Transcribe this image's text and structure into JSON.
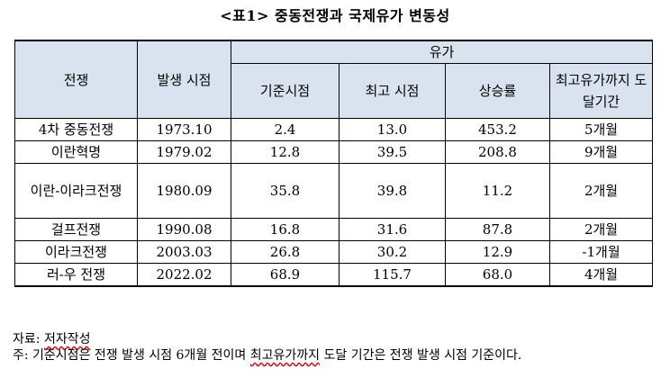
{
  "title": "<표1> 중동전쟁과 국제유가 변동성",
  "table": {
    "headers": {
      "war": "전쟁",
      "date": "발생 시점",
      "oil_group": "유가",
      "base": "기준시점",
      "peak": "최고 시점",
      "rate": "상승률",
      "duration": "최고유가까지 도달기간"
    },
    "rows": [
      {
        "war": "4차 중동전쟁",
        "date": "1973.10",
        "base": "2.4",
        "peak": "13.0",
        "rate": "453.2",
        "duration": "5개월"
      },
      {
        "war": "이란혁명",
        "date": "1979.02",
        "base": "12.8",
        "peak": "39.5",
        "rate": "208.8",
        "duration": "9개월"
      },
      {
        "war": "이란-이라크전쟁",
        "date": "1980.09",
        "base": "35.8",
        "peak": "39.8",
        "rate": "11.2",
        "duration": "2개월"
      },
      {
        "war": "걸프전쟁",
        "date": "1990.08",
        "base": "16.8",
        "peak": "31.6",
        "rate": "87.8",
        "duration": "2개월"
      },
      {
        "war": "이라크전쟁",
        "date": "2003.03",
        "base": "26.8",
        "peak": "30.2",
        "rate": "12.9",
        "duration": "-1개월"
      },
      {
        "war": "러-우 전쟁",
        "date": "2022.02",
        "base": "68.9",
        "peak": "115.7",
        "rate": "68.0",
        "duration": "4개월"
      }
    ]
  },
  "notes": {
    "source_label": "자료: ",
    "source_text": "저자작성",
    "note_a": "주: 기준시점은 전쟁 발생 시점 6개월 전이며 ",
    "note_b": "최고유가까지",
    "note_c": " 도달 기간은 전쟁 발생 시점 기준이다."
  }
}
